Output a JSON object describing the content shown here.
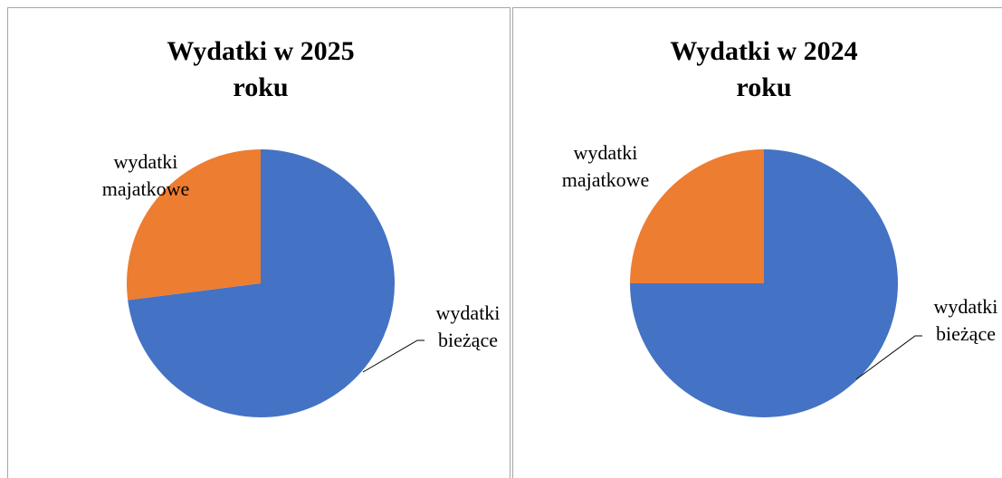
{
  "chart_data": [
    {
      "type": "pie",
      "title": "Wydatki w 2025 roku",
      "categories": [
        "wydatki bieżące",
        "wydatki majatkowe"
      ],
      "values": [
        73,
        27
      ],
      "colors": [
        "#4472c4",
        "#ed7d31"
      ]
    },
    {
      "type": "pie",
      "title": "Wydatki w 2024 roku",
      "categories": [
        "wydatki bieżące",
        "wydatki majatkowe"
      ],
      "values": [
        75,
        25
      ],
      "colors": [
        "#4472c4",
        "#ed7d31"
      ]
    }
  ]
}
